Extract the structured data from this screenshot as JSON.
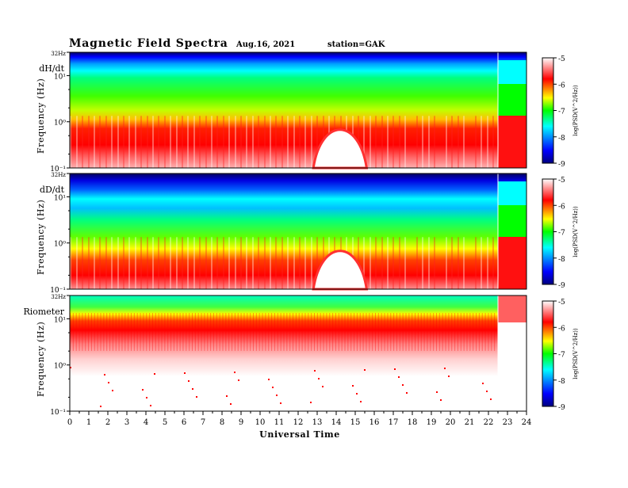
{
  "header": {
    "title": "Magnetic Field Spectra",
    "date": "Aug.16, 2021",
    "station": "station=GAK"
  },
  "chart_data": [
    {
      "type": "heatmap",
      "panel_label": "dH/dt",
      "ylabel": "Frequency (Hz)",
      "y_scale": "log",
      "ylim": [
        0.1,
        32
      ],
      "y_ticks": [
        "32Hz",
        "10¹",
        "10⁰",
        "10⁻¹"
      ],
      "xlim": [
        0,
        24
      ],
      "colorbar": {
        "label": "log(PSD(V^2/Hz))",
        "range": [
          -9,
          -5
        ],
        "ticks": [
          "-5",
          "-6",
          "-7",
          "-8",
          "-9"
        ]
      },
      "features": [
        {
          "x_range": [
            12.8,
            15.6
          ],
          "y_range": [
            0.1,
            1.0
          ],
          "level": "saturated-white"
        },
        {
          "x": 22.5,
          "level": "data-gap-boundary"
        }
      ]
    },
    {
      "type": "heatmap",
      "panel_label": "dD/dt",
      "ylabel": "Frequency (Hz)",
      "y_scale": "log",
      "ylim": [
        0.1,
        32
      ],
      "y_ticks": [
        "32Hz",
        "10¹",
        "10⁰",
        "10⁻¹"
      ],
      "xlim": [
        0,
        24
      ],
      "colorbar": {
        "label": "log(PSD(V^2/Hz))",
        "range": [
          -9,
          -5
        ],
        "ticks": [
          "-5",
          "-6",
          "-7",
          "-8",
          "-9"
        ]
      },
      "features": [
        {
          "x_range": [
            12.8,
            15.6
          ],
          "y_range": [
            0.1,
            1.0
          ],
          "level": "saturated-white"
        },
        {
          "x": 22.5,
          "level": "data-gap-boundary"
        }
      ]
    },
    {
      "type": "heatmap",
      "panel_label": "Riometer",
      "ylabel": "Frequency (Hz)",
      "y_scale": "log",
      "ylim": [
        0.1,
        32
      ],
      "y_ticks": [
        "32Hz",
        "10¹",
        "10⁰",
        "10⁻¹"
      ],
      "xlim": [
        0,
        24
      ],
      "colorbar": {
        "label": "log(PSD(V^2/Hz))",
        "range": [
          -9,
          -5
        ],
        "ticks": [
          "-5",
          "-6",
          "-7",
          "-8",
          "-9"
        ]
      },
      "features": [
        {
          "x": 22.5,
          "level": "data-gap-boundary"
        }
      ]
    }
  ],
  "x_axis": {
    "label": "Universal Time",
    "ticks": [
      "0",
      "1",
      "2",
      "3",
      "4",
      "5",
      "6",
      "7",
      "8",
      "9",
      "10",
      "11",
      "12",
      "13",
      "14",
      "15",
      "16",
      "17",
      "18",
      "19",
      "20",
      "21",
      "22",
      "23",
      "24"
    ]
  },
  "colors": {
    "jet_stops": [
      "#00007f",
      "#0000ff",
      "#00ffff",
      "#00ff00",
      "#ffff00",
      "#ff0000",
      "#ffffff"
    ]
  }
}
